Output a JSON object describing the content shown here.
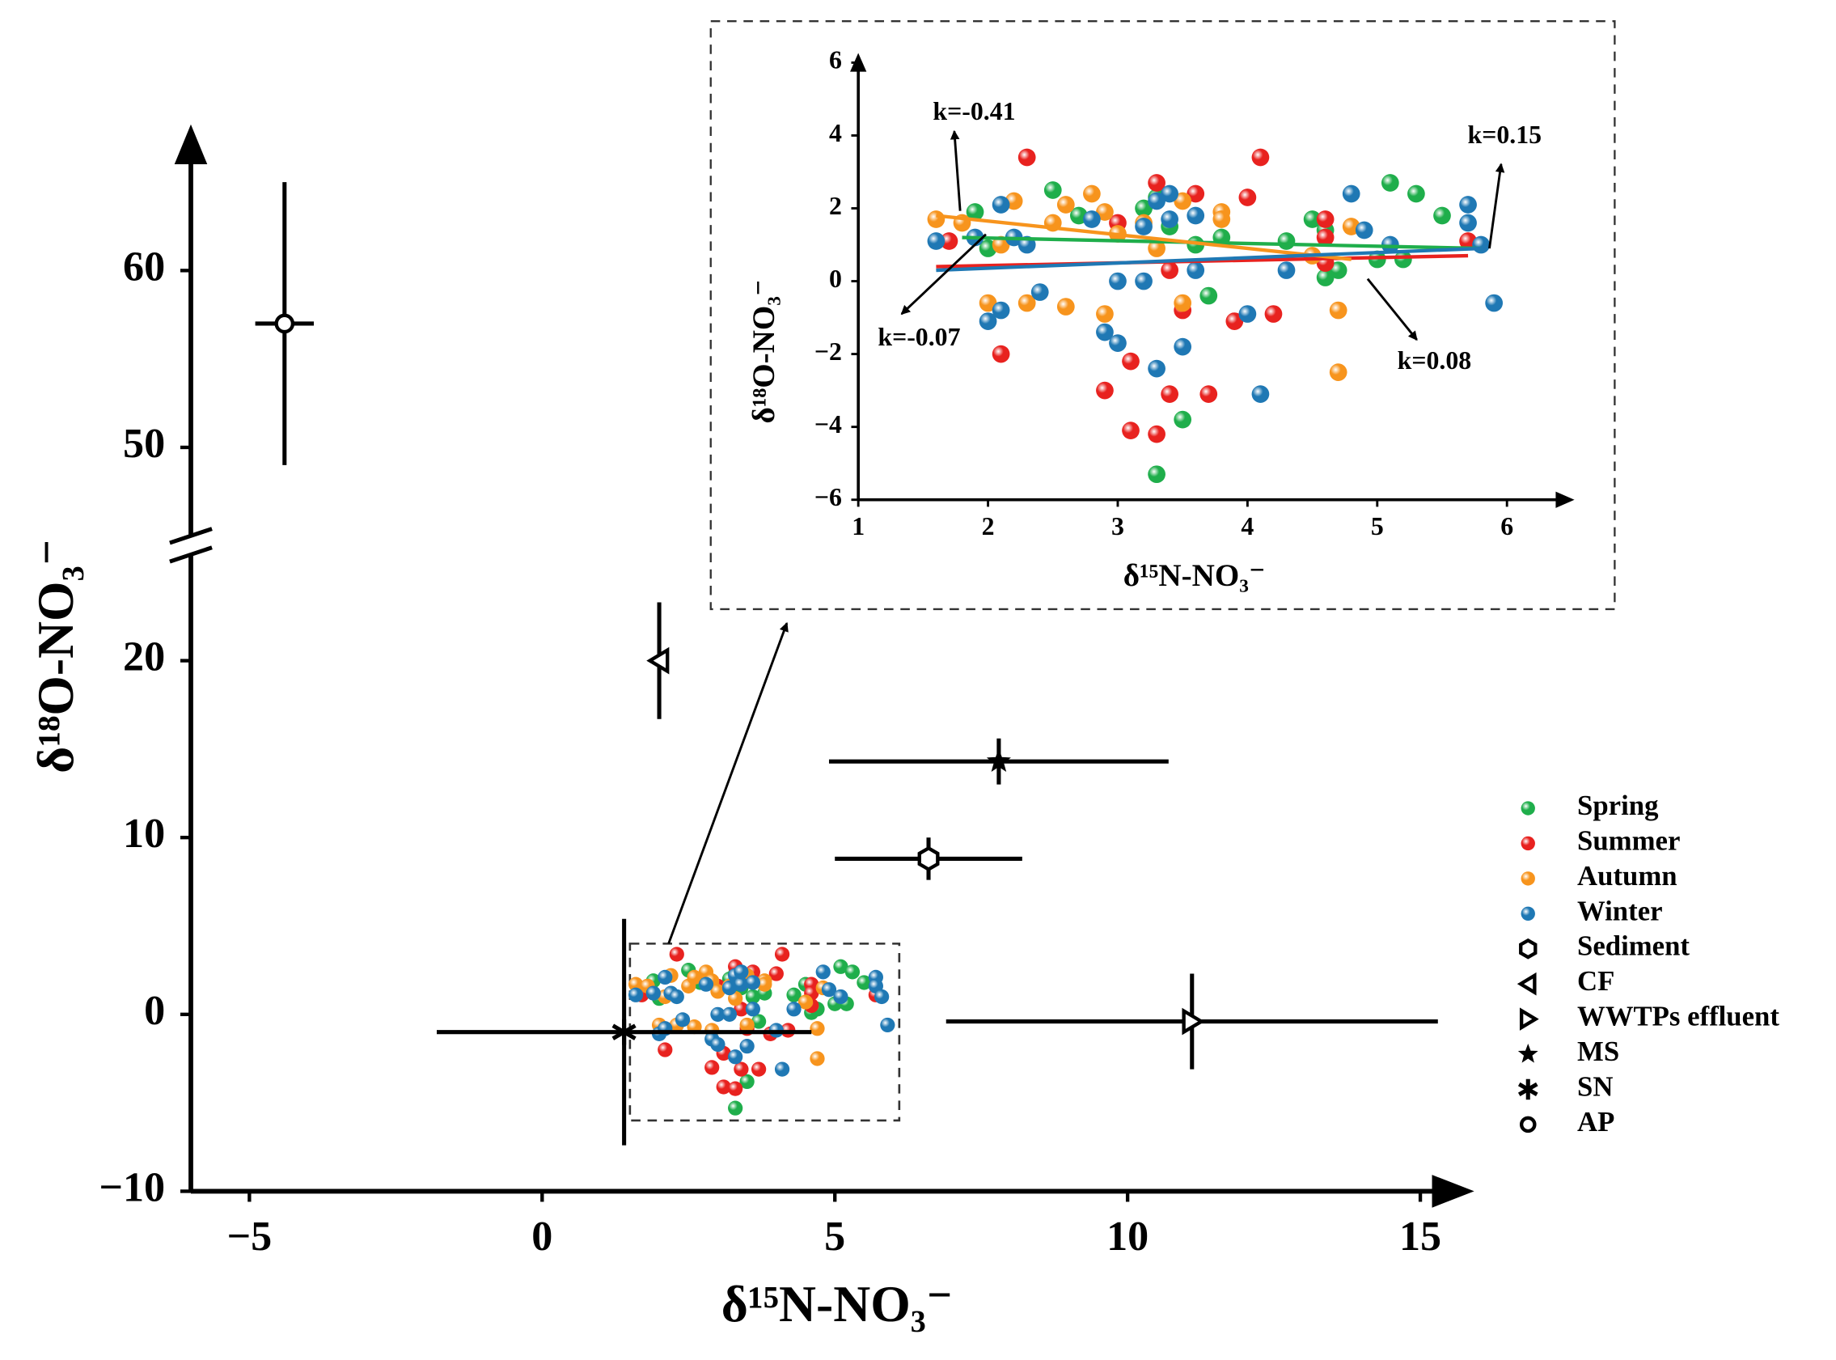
{
  "chart_data": {
    "type": "scatter",
    "xlabel": "δ¹⁵N-NO₃⁻",
    "ylabel": "δ¹⁸O-NO₃⁻",
    "xlim": [
      -6,
      15.8
    ],
    "ylim": [
      -10,
      67.6
    ],
    "ybreak": [
      26,
      45
    ],
    "xticks": [
      {
        "value": -5,
        "label": "−5"
      },
      0,
      5,
      10,
      15
    ],
    "yticks": [
      {
        "value": -10,
        "label": "−10"
      },
      0,
      10,
      20,
      50,
      60
    ],
    "series": [
      {
        "name": "Spring",
        "color": "#1fae4b",
        "x": [
          1.9,
          2.0,
          2.5,
          2.7,
          3.2,
          3.3,
          3.3,
          3.5,
          3.6,
          3.7,
          3.8,
          4.3,
          4.5,
          4.6,
          4.6,
          4.7,
          5.1,
          5.3,
          5.5,
          5.0,
          5.2,
          3.4
        ],
        "values": [
          1.9,
          0.9,
          2.5,
          1.8,
          2.0,
          2.3,
          -5.3,
          -3.8,
          1.0,
          -0.4,
          1.2,
          1.1,
          1.7,
          1.4,
          0.1,
          0.3,
          2.7,
          2.4,
          1.8,
          0.6,
          0.6,
          1.5
        ],
        "trend": {
          "x": [
            1.8,
            5.8
          ],
          "values": [
            1.2,
            0.9
          ],
          "label": "k=-0.07"
        }
      },
      {
        "name": "Summer",
        "color": "#e8221f",
        "x": [
          1.7,
          2.1,
          2.3,
          2.9,
          3.0,
          3.1,
          3.1,
          3.3,
          3.3,
          3.4,
          3.4,
          3.5,
          3.6,
          3.7,
          3.9,
          4.0,
          4.1,
          4.2,
          4.6,
          4.6,
          4.6,
          5.7
        ],
        "values": [
          1.1,
          -2.0,
          3.4,
          -3.0,
          1.6,
          -2.2,
          -4.1,
          -4.2,
          2.7,
          0.3,
          -3.1,
          -0.8,
          2.4,
          -3.1,
          -1.1,
          2.3,
          3.4,
          -0.9,
          1.7,
          0.5,
          1.2,
          1.1
        ],
        "trend": {
          "x": [
            1.6,
            5.7
          ],
          "values": [
            0.4,
            0.7
          ],
          "label": "k=0.08"
        }
      },
      {
        "name": "Autumn",
        "color": "#f7941d",
        "x": [
          1.6,
          1.8,
          2.0,
          2.1,
          2.2,
          2.3,
          2.5,
          2.6,
          2.6,
          2.8,
          2.9,
          2.9,
          3.0,
          3.2,
          3.3,
          3.5,
          3.5,
          3.8,
          3.8,
          4.5,
          4.7,
          4.7,
          4.8
        ],
        "values": [
          1.7,
          1.6,
          -0.6,
          1.0,
          2.2,
          -0.6,
          1.6,
          2.1,
          -0.7,
          2.4,
          -0.9,
          1.9,
          1.3,
          1.6,
          0.9,
          2.2,
          -0.6,
          1.9,
          1.7,
          0.7,
          -0.8,
          -2.5,
          1.5
        ],
        "trend": {
          "x": [
            1.6,
            4.8
          ],
          "values": [
            1.8,
            0.6
          ],
          "label": "k=-0.41"
        }
      },
      {
        "name": "Winter",
        "color": "#1f78b4",
        "x": [
          1.6,
          1.9,
          2.0,
          2.1,
          2.1,
          2.2,
          2.3,
          2.4,
          2.8,
          2.9,
          3.0,
          3.0,
          3.2,
          3.2,
          3.3,
          3.3,
          3.4,
          3.4,
          3.5,
          3.6,
          3.6,
          4.0,
          4.1,
          4.3,
          4.8,
          4.9,
          5.1,
          5.7,
          5.7,
          5.8,
          5.9
        ],
        "values": [
          1.1,
          1.2,
          -1.1,
          -0.8,
          2.1,
          1.2,
          1.0,
          -0.3,
          1.7,
          -1.4,
          -1.7,
          0.0,
          0.0,
          1.5,
          -2.4,
          2.2,
          1.7,
          2.4,
          -1.8,
          0.3,
          1.8,
          -0.9,
          -3.1,
          0.3,
          2.4,
          1.4,
          1.0,
          2.1,
          1.6,
          1.0,
          -0.6
        ],
        "trend": {
          "x": [
            1.6,
            5.8
          ],
          "values": [
            0.3,
            0.9
          ],
          "label": "k=0.15"
        }
      }
    ],
    "sources": [
      {
        "name": "Sediment",
        "marker": "hexagon",
        "x": 6.6,
        "y": 8.8,
        "xerr": 1.6,
        "yerr": 1.2
      },
      {
        "name": "CF",
        "marker": "triangle-left",
        "x": 2.0,
        "y": 20,
        "xerr": 0,
        "yerr": 3.3
      },
      {
        "name": "WWTPs effluent",
        "marker": "triangle-right",
        "x": 11.1,
        "y": -0.4,
        "xerr": 4.2,
        "yerr": 2.7
      },
      {
        "name": "MS",
        "marker": "star",
        "x": 7.8,
        "y": 14.3,
        "xerr": 2.9,
        "yerr": 1.3
      },
      {
        "name": "SN",
        "marker": "asterisk",
        "x": 1.4,
        "y": -1,
        "xerr": 3.2,
        "yerr": 6.4
      },
      {
        "name": "AP",
        "marker": "circle",
        "x": -4.4,
        "y": 57,
        "xerr": 0.5,
        "yerr": 8
      }
    ],
    "zoom_box": {
      "xlim": [
        1.5,
        6.1
      ],
      "ylim": [
        -6,
        4
      ]
    },
    "inset": {
      "xlabel": "δ¹⁵N-NO₃⁻",
      "ylabel": "δ¹⁸O-NO₃⁻",
      "xlim": [
        1,
        6.52
      ],
      "ylim": [
        -6,
        6.2
      ],
      "xticks": [
        1,
        2,
        3,
        4,
        5,
        6
      ],
      "yticks": [
        {
          "value": -6,
          "label": "−6"
        },
        {
          "value": -4,
          "label": "−4"
        },
        {
          "value": -2,
          "label": "−2"
        },
        0,
        2,
        4,
        6
      ]
    }
  }
}
